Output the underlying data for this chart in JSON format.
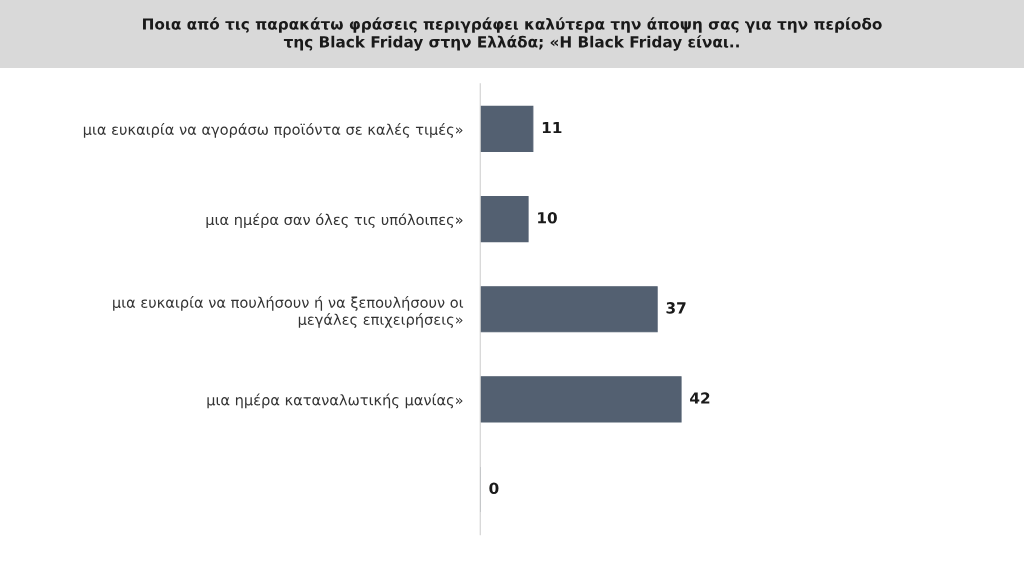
{
  "chart_data": {
    "type": "bar",
    "orientation": "horizontal",
    "title": "Ποια από τις παρακάτω φράσεις περιγράφει καλύτερα την άποψη σας για την περίοδο\nτης Black Friday στην Ελλάδα; «Η Black Friday είναι..",
    "categories": [
      "μια ευκαιρία να αγοράσω προϊόντα σε καλές τιμές»",
      "μια ημέρα σαν όλες τις υπόλοιπες»",
      "μια ευκαιρία να πουλήσουν ή να ξεπουλήσουν οι\nμεγάλες επιχειρήσεις»",
      "μια ημέρα καταναλωτικής μανίας»",
      null
    ],
    "values": [
      11,
      10,
      37,
      42,
      0
    ],
    "color": "#536071",
    "data_labels": true,
    "grid": false,
    "legend": false
  }
}
